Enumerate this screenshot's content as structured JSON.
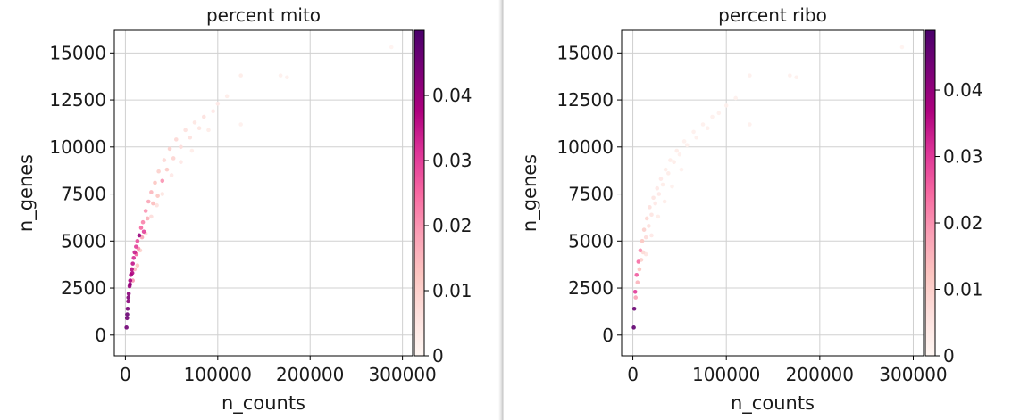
{
  "chart_data": [
    {
      "type": "scatter",
      "title": "percent mito",
      "xlabel": "n_counts",
      "ylabel": "n_genes",
      "xlim": [
        -12000,
        311000
      ],
      "ylim": [
        -1100,
        16200
      ],
      "xticks": [
        0,
        100000,
        200000,
        300000
      ],
      "xtick_labels": [
        "0",
        "100000",
        "200000",
        "300000"
      ],
      "yticks": [
        0,
        2500,
        5000,
        7500,
        10000,
        12500,
        15000
      ],
      "ytick_labels": [
        "0",
        "2500",
        "5000",
        "7500",
        "10000",
        "12500",
        "15000"
      ],
      "grid": true,
      "colorbar": {
        "label": "",
        "cmap": "RdPu",
        "range": [
          0,
          0.05
        ],
        "ticks": [
          0,
          0.01,
          0.02,
          0.03,
          0.04
        ],
        "tick_labels": [
          "0",
          "0.01",
          "0.02",
          "0.03",
          "0.04"
        ]
      },
      "points": [
        {
          "x": 1200,
          "y": 400,
          "c": 0.045
        },
        {
          "x": 1800,
          "y": 900,
          "c": 0.045
        },
        {
          "x": 2400,
          "y": 1400,
          "c": 0.044
        },
        {
          "x": 3000,
          "y": 1800,
          "c": 0.042
        },
        {
          "x": 3600,
          "y": 2200,
          "c": 0.042
        },
        {
          "x": 4500,
          "y": 2600,
          "c": 0.04
        },
        {
          "x": 5200,
          "y": 2900,
          "c": 0.038
        },
        {
          "x": 6000,
          "y": 3200,
          "c": 0.038
        },
        {
          "x": 7000,
          "y": 3500,
          "c": 0.036
        },
        {
          "x": 8000,
          "y": 3800,
          "c": 0.035
        },
        {
          "x": 9000,
          "y": 4100,
          "c": 0.032
        },
        {
          "x": 10000,
          "y": 4400,
          "c": 0.034
        },
        {
          "x": 11500,
          "y": 4700,
          "c": 0.03
        },
        {
          "x": 13000,
          "y": 5000,
          "c": 0.028
        },
        {
          "x": 15000,
          "y": 5300,
          "c": 0.04
        },
        {
          "x": 17000,
          "y": 5700,
          "c": 0.025
        },
        {
          "x": 19000,
          "y": 6000,
          "c": 0.022
        },
        {
          "x": 22000,
          "y": 6600,
          "c": 0.02
        },
        {
          "x": 25000,
          "y": 7100,
          "c": 0.018
        },
        {
          "x": 28000,
          "y": 7600,
          "c": 0.015
        },
        {
          "x": 32000,
          "y": 8100,
          "c": 0.012
        },
        {
          "x": 36000,
          "y": 8700,
          "c": 0.01
        },
        {
          "x": 42000,
          "y": 9300,
          "c": 0.008
        },
        {
          "x": 48000,
          "y": 9900,
          "c": 0.01
        },
        {
          "x": 55000,
          "y": 10400,
          "c": 0.008
        },
        {
          "x": 65000,
          "y": 10900,
          "c": 0.006
        },
        {
          "x": 75000,
          "y": 11300,
          "c": 0.005
        },
        {
          "x": 85000,
          "y": 11600,
          "c": 0.006
        },
        {
          "x": 100000,
          "y": 12300,
          "c": 0.004
        },
        {
          "x": 110000,
          "y": 12700,
          "c": 0.003
        },
        {
          "x": 125000,
          "y": 13800,
          "c": 0.003
        },
        {
          "x": 125000,
          "y": 11200,
          "c": 0.002
        },
        {
          "x": 175000,
          "y": 13700,
          "c": 0.002
        },
        {
          "x": 168000,
          "y": 13800,
          "c": 0.002
        },
        {
          "x": 288000,
          "y": 15300,
          "c": 0.001
        },
        {
          "x": 2000,
          "y": 1100,
          "c": 0.046
        },
        {
          "x": 3200,
          "y": 2000,
          "c": 0.043
        },
        {
          "x": 5000,
          "y": 2700,
          "c": 0.041
        },
        {
          "x": 7500,
          "y": 3300,
          "c": 0.037
        },
        {
          "x": 12000,
          "y": 4300,
          "c": 0.026
        },
        {
          "x": 14000,
          "y": 4600,
          "c": 0.02
        },
        {
          "x": 18000,
          "y": 5200,
          "c": 0.018
        },
        {
          "x": 20000,
          "y": 5500,
          "c": 0.03
        },
        {
          "x": 24000,
          "y": 6200,
          "c": 0.016
        },
        {
          "x": 30000,
          "y": 7000,
          "c": 0.014
        },
        {
          "x": 35000,
          "y": 7400,
          "c": 0.012
        },
        {
          "x": 40000,
          "y": 8200,
          "c": 0.02
        },
        {
          "x": 45000,
          "y": 8800,
          "c": 0.011
        },
        {
          "x": 52000,
          "y": 9400,
          "c": 0.009
        },
        {
          "x": 60000,
          "y": 10000,
          "c": 0.007
        },
        {
          "x": 70000,
          "y": 10500,
          "c": 0.006
        },
        {
          "x": 80000,
          "y": 11000,
          "c": 0.005
        },
        {
          "x": 95000,
          "y": 11900,
          "c": 0.004
        },
        {
          "x": 10000,
          "y": 3500,
          "c": 0.015
        },
        {
          "x": 16000,
          "y": 4500,
          "c": 0.01
        },
        {
          "x": 22000,
          "y": 5400,
          "c": 0.008
        },
        {
          "x": 28000,
          "y": 6300,
          "c": 0.007
        },
        {
          "x": 34000,
          "y": 6900,
          "c": 0.006
        },
        {
          "x": 40000,
          "y": 7500,
          "c": 0.005
        },
        {
          "x": 8000,
          "y": 2900,
          "c": 0.02
        },
        {
          "x": 13000,
          "y": 3700,
          "c": 0.012
        },
        {
          "x": 50000,
          "y": 8500,
          "c": 0.004
        },
        {
          "x": 60000,
          "y": 9200,
          "c": 0.004
        },
        {
          "x": 72000,
          "y": 9800,
          "c": 0.003
        },
        {
          "x": 90000,
          "y": 10900,
          "c": 0.003
        }
      ]
    },
    {
      "type": "scatter",
      "title": "percent ribo",
      "xlabel": "n_counts",
      "ylabel": "n_genes",
      "xlim": [
        -12000,
        311000
      ],
      "ylim": [
        -1100,
        16200
      ],
      "xticks": [
        0,
        100000,
        200000,
        300000
      ],
      "xtick_labels": [
        "0",
        "100000",
        "200000",
        "300000"
      ],
      "yticks": [
        0,
        2500,
        5000,
        7500,
        10000,
        12500,
        15000
      ],
      "ytick_labels": [
        "0",
        "2500",
        "5000",
        "7500",
        "10000",
        "12500",
        "15000"
      ],
      "grid": true,
      "colorbar": {
        "label": "",
        "cmap": "RdPu",
        "range": [
          0,
          0.049
        ],
        "ticks": [
          0,
          0.01,
          0.02,
          0.03,
          0.04
        ],
        "tick_labels": [
          "0",
          "0.01",
          "0.02",
          "0.03",
          "0.04"
        ]
      },
      "points": [
        {
          "x": 1000,
          "y": 400,
          "c": 0.046
        },
        {
          "x": 1500,
          "y": 1400,
          "c": 0.045
        },
        {
          "x": 2500,
          "y": 2300,
          "c": 0.03
        },
        {
          "x": 4000,
          "y": 3200,
          "c": 0.026
        },
        {
          "x": 6000,
          "y": 3900,
          "c": 0.024
        },
        {
          "x": 8000,
          "y": 4500,
          "c": 0.02
        },
        {
          "x": 10000,
          "y": 5000,
          "c": 0.012
        },
        {
          "x": 12000,
          "y": 5600,
          "c": 0.01
        },
        {
          "x": 15000,
          "y": 6200,
          "c": 0.008
        },
        {
          "x": 18000,
          "y": 6800,
          "c": 0.006
        },
        {
          "x": 22000,
          "y": 7300,
          "c": 0.005
        },
        {
          "x": 26000,
          "y": 7800,
          "c": 0.004
        },
        {
          "x": 30000,
          "y": 8300,
          "c": 0.004
        },
        {
          "x": 35000,
          "y": 8800,
          "c": 0.003
        },
        {
          "x": 40000,
          "y": 9300,
          "c": 0.003
        },
        {
          "x": 47000,
          "y": 9800,
          "c": 0.003
        },
        {
          "x": 55000,
          "y": 10300,
          "c": 0.002
        },
        {
          "x": 65000,
          "y": 10800,
          "c": 0.002
        },
        {
          "x": 75000,
          "y": 11200,
          "c": 0.002
        },
        {
          "x": 85000,
          "y": 11600,
          "c": 0.002
        },
        {
          "x": 100000,
          "y": 12200,
          "c": 0.002
        },
        {
          "x": 110000,
          "y": 12600,
          "c": 0.002
        },
        {
          "x": 125000,
          "y": 13800,
          "c": 0.002
        },
        {
          "x": 125000,
          "y": 11200,
          "c": 0.002
        },
        {
          "x": 175000,
          "y": 13700,
          "c": 0.002
        },
        {
          "x": 168000,
          "y": 13800,
          "c": 0.002
        },
        {
          "x": 288000,
          "y": 15300,
          "c": 0.001
        },
        {
          "x": 3000,
          "y": 2000,
          "c": 0.018
        },
        {
          "x": 5000,
          "y": 2800,
          "c": 0.015
        },
        {
          "x": 7000,
          "y": 3500,
          "c": 0.012
        },
        {
          "x": 9000,
          "y": 4000,
          "c": 0.01
        },
        {
          "x": 11000,
          "y": 4400,
          "c": 0.008
        },
        {
          "x": 14000,
          "y": 5200,
          "c": 0.007
        },
        {
          "x": 17000,
          "y": 5800,
          "c": 0.006
        },
        {
          "x": 20000,
          "y": 6400,
          "c": 0.005
        },
        {
          "x": 24000,
          "y": 7000,
          "c": 0.004
        },
        {
          "x": 28000,
          "y": 7500,
          "c": 0.004
        },
        {
          "x": 32000,
          "y": 8000,
          "c": 0.003
        },
        {
          "x": 38000,
          "y": 8600,
          "c": 0.003
        },
        {
          "x": 44000,
          "y": 9200,
          "c": 0.003
        },
        {
          "x": 50000,
          "y": 9600,
          "c": 0.002
        },
        {
          "x": 58000,
          "y": 10100,
          "c": 0.002
        },
        {
          "x": 68000,
          "y": 10500,
          "c": 0.002
        },
        {
          "x": 80000,
          "y": 11000,
          "c": 0.002
        },
        {
          "x": 92000,
          "y": 11800,
          "c": 0.002
        },
        {
          "x": 14000,
          "y": 4300,
          "c": 0.005
        },
        {
          "x": 20000,
          "y": 5300,
          "c": 0.004
        },
        {
          "x": 27000,
          "y": 6300,
          "c": 0.003
        },
        {
          "x": 34000,
          "y": 7100,
          "c": 0.003
        },
        {
          "x": 42000,
          "y": 7900,
          "c": 0.002
        },
        {
          "x": 52000,
          "y": 8800,
          "c": 0.002
        }
      ]
    }
  ]
}
